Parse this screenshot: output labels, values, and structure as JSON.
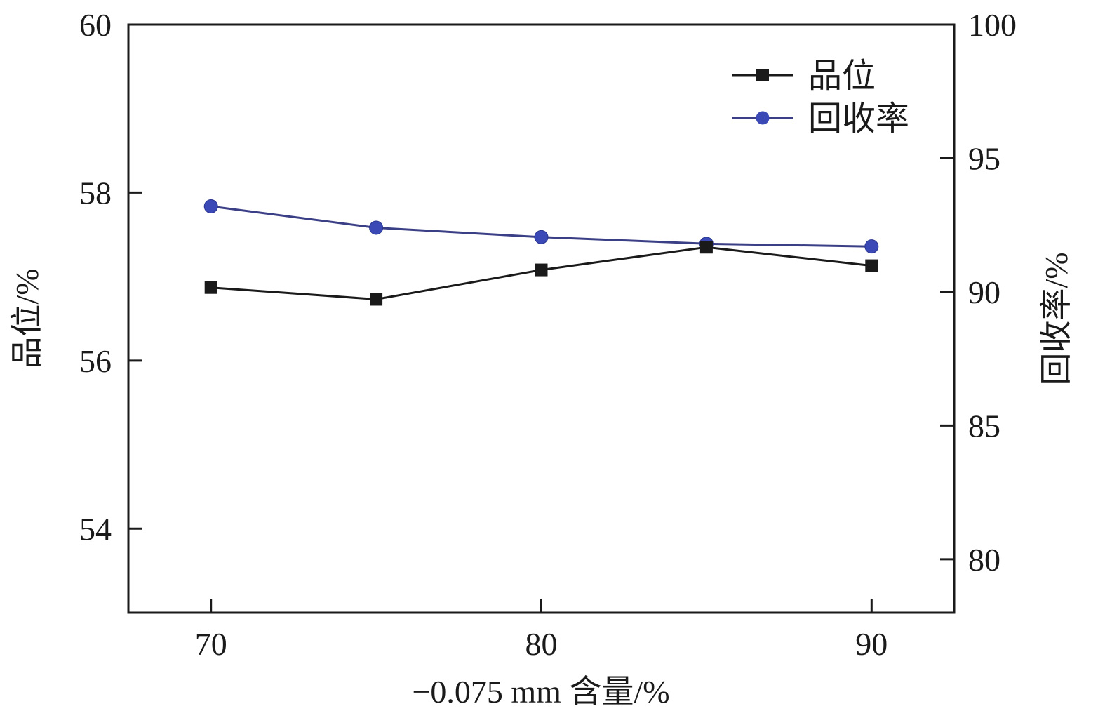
{
  "chart_data": {
    "type": "line",
    "xlabel": "−0.075 mm 含量/%",
    "ylabel_left": "品位/%",
    "ylabel_right": "回收率/%",
    "x": [
      70,
      75,
      80,
      85,
      90
    ],
    "x_ticks": [
      70,
      80,
      90
    ],
    "xlim": [
      67.5,
      92.5
    ],
    "ylim_left": [
      53,
      60
    ],
    "y_ticks_left": [
      54,
      56,
      58,
      60
    ],
    "ylim_right": [
      78,
      100
    ],
    "y_ticks_right": [
      80,
      85,
      90,
      95,
      100
    ],
    "grid": false,
    "legend_position": "top-right",
    "series": [
      {
        "name": "品位",
        "axis": "left",
        "marker": "square",
        "color": "#1a1a1a",
        "values": [
          56.87,
          56.73,
          57.08,
          57.35,
          57.13
        ]
      },
      {
        "name": "回收率",
        "axis": "right",
        "marker": "circle",
        "color": "#3a49b5",
        "values": [
          93.2,
          92.4,
          92.05,
          91.8,
          91.7
        ]
      }
    ]
  }
}
